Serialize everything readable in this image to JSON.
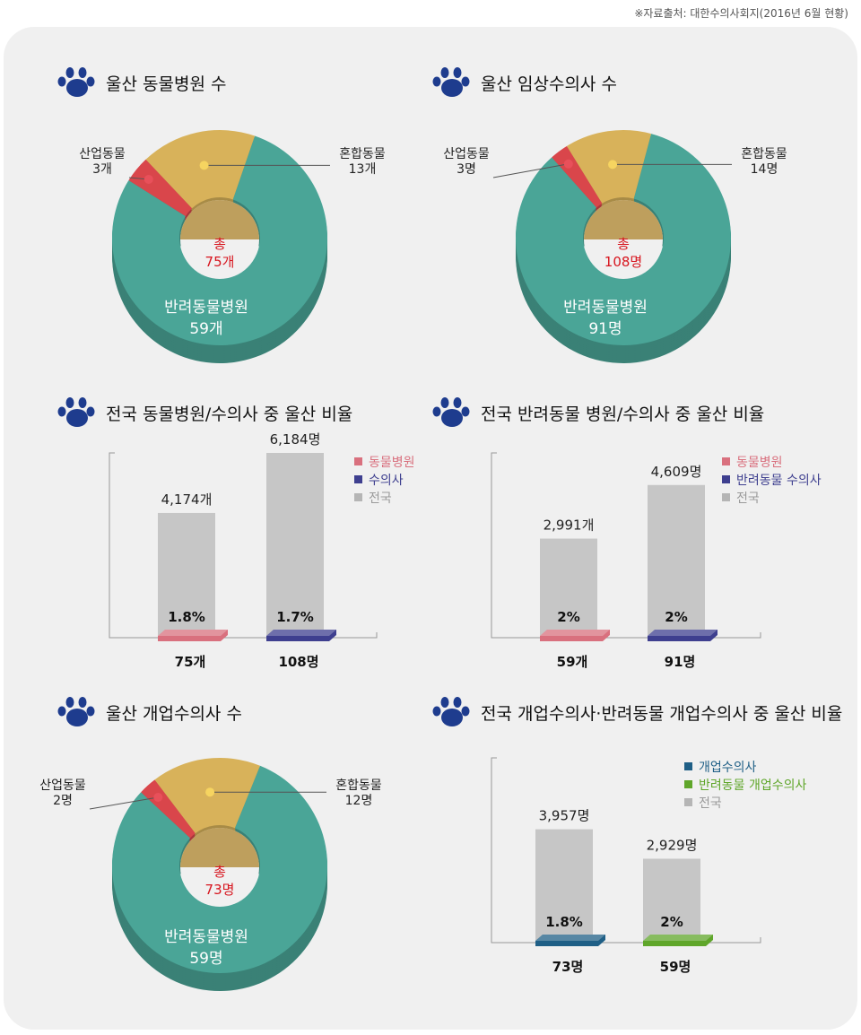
{
  "source": "※자료출처: 대한수의사회지(2016년 6월 현황)",
  "colors": {
    "teal": "#4aa597",
    "gold": "#d8b25a",
    "red": "#d9464b",
    "gray": "#c6c6c6",
    "pink": "#d9707e",
    "navy": "#3e3f8f",
    "blue": "#1f5f86",
    "green": "#5fa62a",
    "paw": "#1e3c8e",
    "total": "#d7151e"
  },
  "donuts": [
    {
      "title": "울산 동물병원 수",
      "total_label": "총",
      "total_value": "75개",
      "slices": [
        {
          "name": "반려동물병원",
          "value": 59,
          "label": "59개",
          "color": "#4aa597"
        },
        {
          "name": "산업동물",
          "value": 3,
          "label": "3개",
          "color": "#d9464b"
        },
        {
          "name": "혼합동물",
          "value": 13,
          "label": "13개",
          "color": "#d8b25a"
        }
      ]
    },
    {
      "title": "울산 임상수의사 수",
      "total_label": "총",
      "total_value": "108명",
      "slices": [
        {
          "name": "반려동물병원",
          "value": 91,
          "label": "91명",
          "color": "#4aa597"
        },
        {
          "name": "산업동물",
          "value": 3,
          "label": "3명",
          "color": "#d9464b"
        },
        {
          "name": "혼합동물",
          "value": 14,
          "label": "14명",
          "color": "#d8b25a"
        }
      ]
    },
    {
      "title": "울산 개업수의사 수",
      "total_label": "총",
      "total_value": "73명",
      "slices": [
        {
          "name": "반려동물병원",
          "value": 59,
          "label": "59명",
          "color": "#4aa597"
        },
        {
          "name": "산업동물",
          "value": 2,
          "label": "2명",
          "color": "#d9464b"
        },
        {
          "name": "혼합동물",
          "value": 12,
          "label": "12명",
          "color": "#d8b25a"
        }
      ]
    }
  ],
  "bars": [
    {
      "title": "전국 동물병원/수의사 중 울산 비율",
      "legend": [
        {
          "name": "동물병원",
          "color": "#d9707e"
        },
        {
          "name": "수의사",
          "color": "#3e3f8f"
        },
        {
          "name": "전국",
          "color": "#b5b5b5"
        }
      ],
      "items": [
        {
          "national": 4174,
          "national_label": "4,174개",
          "pct": "1.8%",
          "ulsan_label": "75개",
          "color": "#d9707e"
        },
        {
          "national": 6184,
          "national_label": "6,184명",
          "pct": "1.7%",
          "ulsan_label": "108명",
          "color": "#3e3f8f"
        }
      ]
    },
    {
      "title": "전국 반려동물 병원/수의사 중 울산 비율",
      "legend": [
        {
          "name": "동물병원",
          "color": "#d9707e"
        },
        {
          "name": "반려동물 수의사",
          "color": "#3e3f8f"
        },
        {
          "name": "전국",
          "color": "#b5b5b5"
        }
      ],
      "items": [
        {
          "national": 2991,
          "national_label": "2,991개",
          "pct": "2%",
          "ulsan_label": "59개",
          "color": "#d9707e"
        },
        {
          "national": 4609,
          "national_label": "4,609명",
          "pct": "2%",
          "ulsan_label": "91명",
          "color": "#3e3f8f"
        }
      ]
    },
    {
      "title": "전국 개업수의사·반려동물 개업수의사 중 울산 비율",
      "legend": [
        {
          "name": "개업수의사",
          "color": "#1f5f86"
        },
        {
          "name": "반려동물 개업수의사",
          "color": "#5fa62a"
        },
        {
          "name": "전국",
          "color": "#b5b5b5"
        }
      ],
      "items": [
        {
          "national": 3957,
          "national_label": "3,957명",
          "pct": "1.8%",
          "ulsan_label": "73명",
          "color": "#1f5f86"
        },
        {
          "national": 2929,
          "national_label": "2,929명",
          "pct": "2%",
          "ulsan_label": "59명",
          "color": "#5fa62a"
        }
      ]
    }
  ],
  "chart_data": [
    {
      "type": "pie",
      "title": "울산 동물병원 수",
      "categories": [
        "반려동물병원",
        "산업동물",
        "혼합동물"
      ],
      "values": [
        59,
        3,
        13
      ],
      "total": 75
    },
    {
      "type": "pie",
      "title": "울산 임상수의사 수",
      "categories": [
        "반려동물병원",
        "산업동물",
        "혼합동물"
      ],
      "values": [
        91,
        3,
        14
      ],
      "total": 108
    },
    {
      "type": "bar",
      "title": "전국 동물병원/수의사 중 울산 비율",
      "categories": [
        "동물병원",
        "수의사"
      ],
      "series": [
        {
          "name": "전국",
          "values": [
            4174,
            6184
          ]
        },
        {
          "name": "울산",
          "values": [
            75,
            108
          ]
        }
      ],
      "ratio": [
        "1.8%",
        "1.7%"
      ]
    },
    {
      "type": "bar",
      "title": "전국 반려동물 병원/수의사 중 울산 비율",
      "categories": [
        "동물병원",
        "반려동물 수의사"
      ],
      "series": [
        {
          "name": "전국",
          "values": [
            2991,
            4609
          ]
        },
        {
          "name": "울산",
          "values": [
            59,
            91
          ]
        }
      ],
      "ratio": [
        "2%",
        "2%"
      ]
    },
    {
      "type": "pie",
      "title": "울산 개업수의사 수",
      "categories": [
        "반려동물병원",
        "산업동물",
        "혼합동물"
      ],
      "values": [
        59,
        2,
        12
      ],
      "total": 73
    },
    {
      "type": "bar",
      "title": "전국 개업수의사·반려동물 개업수의사 중 울산 비율",
      "categories": [
        "개업수의사",
        "반려동물 개업수의사"
      ],
      "series": [
        {
          "name": "전국",
          "values": [
            3957,
            2929
          ]
        },
        {
          "name": "울산",
          "values": [
            73,
            59
          ]
        }
      ],
      "ratio": [
        "1.8%",
        "2%"
      ]
    }
  ]
}
